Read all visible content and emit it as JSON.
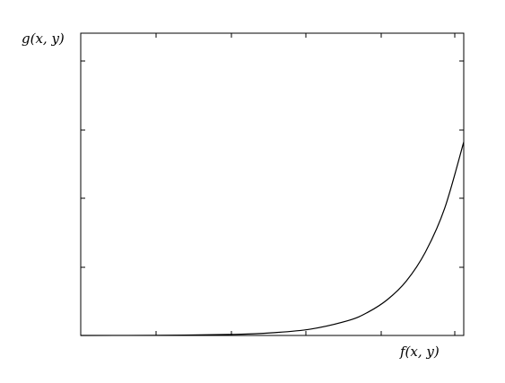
{
  "chart_data": {
    "type": "line",
    "xlabel": "f(x, y)",
    "ylabel": "g(x, y)",
    "title": "",
    "x_tick_labels": [],
    "y_tick_labels": [],
    "xlim": [
      0,
      1
    ],
    "ylim": [
      0,
      1
    ],
    "grid": false,
    "legend": "none",
    "line_color": "#000000",
    "series": [
      {
        "x": [
          0,
          0.2,
          0.4,
          0.5,
          0.6,
          0.7,
          0.75,
          0.8,
          0.85,
          0.9,
          0.95,
          1.0
        ],
        "y": [
          0,
          0.0005,
          0.0036,
          0.009,
          0.021,
          0.05,
          0.077,
          0.118,
          0.18,
          0.276,
          0.42,
          0.64
        ]
      }
    ]
  }
}
